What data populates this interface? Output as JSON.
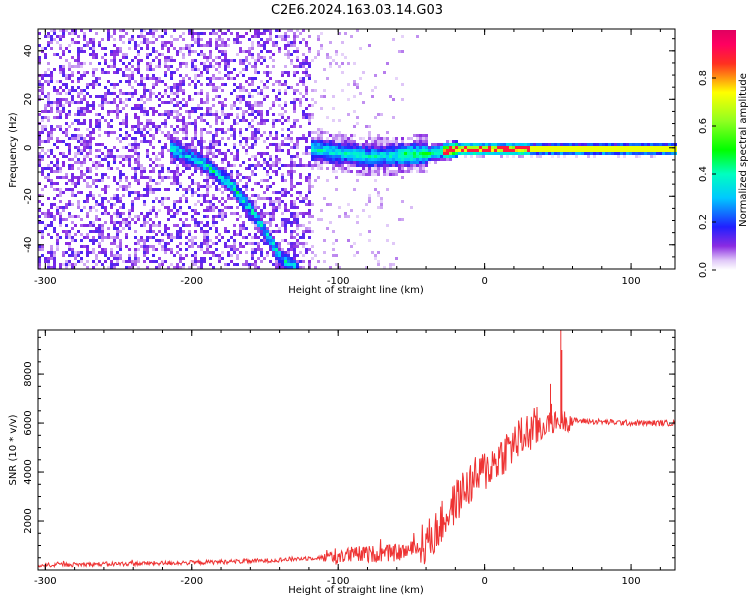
{
  "title": "C2E6.2024.163.03.14.G03",
  "colors": {
    "snr_line": "#ee3333",
    "axis": "#000000",
    "background": "#ffffff"
  },
  "chart_data": [
    {
      "type": "heatmap",
      "xlabel": "Height of straight line (km)",
      "ylabel": "Frequency (Hz)",
      "xlim": [
        -305,
        130
      ],
      "ylim": [
        -50,
        49
      ],
      "x_ticks": [
        -300,
        -200,
        -100,
        0,
        100
      ],
      "y_ticks": [
        -40,
        -20,
        0,
        20,
        40
      ],
      "colorbar": {
        "label": "Normalized spectral amplitude",
        "range": [
          0,
          1
        ],
        "ticks": [
          "0.0",
          "0.2",
          "0.4",
          "0.6",
          "0.8"
        ],
        "tick_values": [
          0.0,
          0.2,
          0.4,
          0.6,
          0.8
        ],
        "colormap": "gist_ncar-like (white to violet to blue to cyan to green to yellow to red to magenta)"
      },
      "features": [
        {
          "name": "noise",
          "x_range": [
            -305,
            -120
          ],
          "freq_range": [
            -50,
            49
          ],
          "amplitude": 0.1
        },
        {
          "name": "descending streak",
          "points": [
            [
              -215,
              0
            ],
            [
              -195,
              -5
            ],
            [
              -175,
              -14
            ],
            [
              -158,
              -27
            ],
            [
              -140,
              -45
            ],
            [
              -128,
              -50
            ]
          ],
          "amplitude": 0.35
        },
        {
          "name": "carrier",
          "points": [
            [
              -120,
              0
            ],
            [
              -80,
              -3
            ],
            [
              -40,
              -2
            ],
            [
              -20,
              0
            ],
            [
              0,
              0
            ],
            [
              130,
              0
            ]
          ],
          "amplitude": [
            0.35,
            0.5,
            0.8,
            0.9
          ]
        }
      ]
    },
    {
      "type": "line",
      "xlabel": "Height of straight line (km)",
      "ylabel": "SNR (10 * v/v)",
      "xlim": [
        -305,
        130
      ],
      "ylim": [
        0,
        9800
      ],
      "x_ticks": [
        -300,
        -200,
        -100,
        0,
        100
      ],
      "y_ticks": [
        2000,
        4000,
        6000,
        8000
      ],
      "series": [
        {
          "color": "#ee3333",
          "x": [
            -305,
            -250,
            -200,
            -150,
            -110,
            -90,
            -60,
            -45,
            -35,
            -25,
            -15,
            -5,
            5,
            15,
            25,
            35,
            45,
            52,
            60,
            80,
            100,
            130
          ],
          "values": [
            200,
            250,
            300,
            380,
            520,
            620,
            700,
            900,
            1400,
            2300,
            3200,
            3800,
            4300,
            4900,
            5400,
            5800,
            6000,
            6100,
            6100,
            6050,
            6000,
            6000
          ]
        }
      ],
      "annotations": [
        {
          "x": 52,
          "value": 9800,
          "note": "spike"
        },
        {
          "x": 45,
          "value": 7600,
          "note": "spike"
        }
      ]
    }
  ]
}
